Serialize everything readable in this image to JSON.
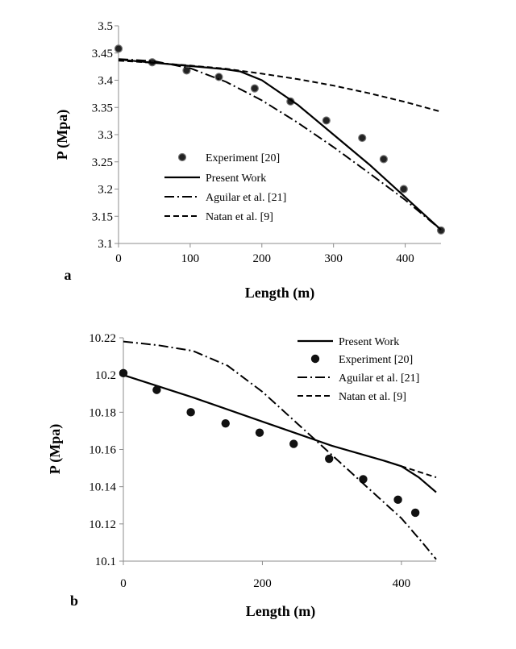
{
  "chart_data": [
    {
      "type": "line",
      "panel_label": "a",
      "xlabel": "Length (m)",
      "ylabel": "P (Mpa)",
      "xlim": [
        0,
        450
      ],
      "ylim": [
        3.1,
        3.5
      ],
      "x_ticks": [
        0,
        100,
        200,
        300,
        400
      ],
      "y_ticks": [
        3.1,
        3.15,
        3.2,
        3.25,
        3.3,
        3.35,
        3.4,
        3.45,
        3.5
      ],
      "x_tick_labels": [
        "0",
        "100",
        "200",
        "300",
        "400"
      ],
      "y_tick_labels": [
        "3.1",
        "3.15",
        "3.2",
        "3.25",
        "3.3",
        "3.35",
        "3.4",
        "3.45",
        "3.5"
      ],
      "legend_position": "bottom-left",
      "series": [
        {
          "name": "Experiment [20]",
          "style": "points",
          "x": [
            0,
            47,
            95,
            140,
            190,
            240,
            290,
            340,
            370,
            398,
            450
          ],
          "y": [
            3.458,
            3.433,
            3.418,
            3.406,
            3.385,
            3.361,
            3.326,
            3.294,
            3.255,
            3.2,
            3.124
          ]
        },
        {
          "name": "Present Work",
          "style": "solid",
          "x": [
            0,
            50,
            100,
            150,
            170,
            200,
            250,
            300,
            350,
            400,
            450
          ],
          "y": [
            3.438,
            3.432,
            3.426,
            3.42,
            3.416,
            3.4,
            3.355,
            3.3,
            3.245,
            3.185,
            3.125
          ]
        },
        {
          "name": "Aguilar et al. [21]",
          "style": "dash-dot",
          "x": [
            0,
            50,
            100,
            150,
            200,
            250,
            300,
            350,
            400,
            450
          ],
          "y": [
            3.439,
            3.435,
            3.422,
            3.397,
            3.363,
            3.322,
            3.277,
            3.229,
            3.18,
            3.125
          ]
        },
        {
          "name": "Natan et al. [9]",
          "style": "dashed",
          "x": [
            0,
            50,
            100,
            150,
            200,
            250,
            300,
            350,
            400,
            450
          ],
          "y": [
            3.436,
            3.432,
            3.427,
            3.421,
            3.412,
            3.402,
            3.39,
            3.376,
            3.36,
            3.342
          ]
        }
      ]
    },
    {
      "type": "line",
      "panel_label": "b",
      "xlabel": "Length (m)",
      "ylabel": "P (Mpa)",
      "xlim": [
        0,
        450
      ],
      "ylim": [
        10.1,
        10.22
      ],
      "x_ticks": [
        0,
        200,
        400
      ],
      "y_ticks": [
        10.1,
        10.12,
        10.14,
        10.16,
        10.18,
        10.2,
        10.22
      ],
      "x_tick_labels": [
        "0",
        "200",
        "400"
      ],
      "y_tick_labels": [
        "10.1",
        "10.12",
        "10.14",
        "10.16",
        "10.18",
        "10.2",
        "10.22"
      ],
      "legend_position": "top-right",
      "series": [
        {
          "name": "Present Work",
          "style": "solid",
          "x": [
            0,
            100,
            200,
            300,
            375,
            400,
            425,
            450
          ],
          "y": [
            10.2,
            10.188,
            10.175,
            10.162,
            10.154,
            10.151,
            10.145,
            10.137
          ]
        },
        {
          "name": "Experiment [20]",
          "style": "points",
          "x": [
            0,
            48,
            97,
            147,
            196,
            245,
            296,
            345,
            395,
            420
          ],
          "y": [
            10.201,
            10.192,
            10.18,
            10.174,
            10.169,
            10.163,
            10.155,
            10.144,
            10.133,
            10.126
          ]
        },
        {
          "name": "Aguilar et al. [21]",
          "style": "dash-dot",
          "x": [
            0,
            25,
            50,
            100,
            150,
            200,
            250,
            300,
            350,
            400,
            430,
            450
          ],
          "y": [
            10.218,
            10.217,
            10.216,
            10.213,
            10.205,
            10.191,
            10.174,
            10.157,
            10.14,
            10.123,
            10.11,
            10.101
          ]
        },
        {
          "name": "Natan et al. [9]",
          "style": "dashed",
          "x": [
            375,
            400,
            425,
            450
          ],
          "y": [
            10.154,
            10.151,
            10.148,
            10.145
          ]
        }
      ]
    }
  ]
}
